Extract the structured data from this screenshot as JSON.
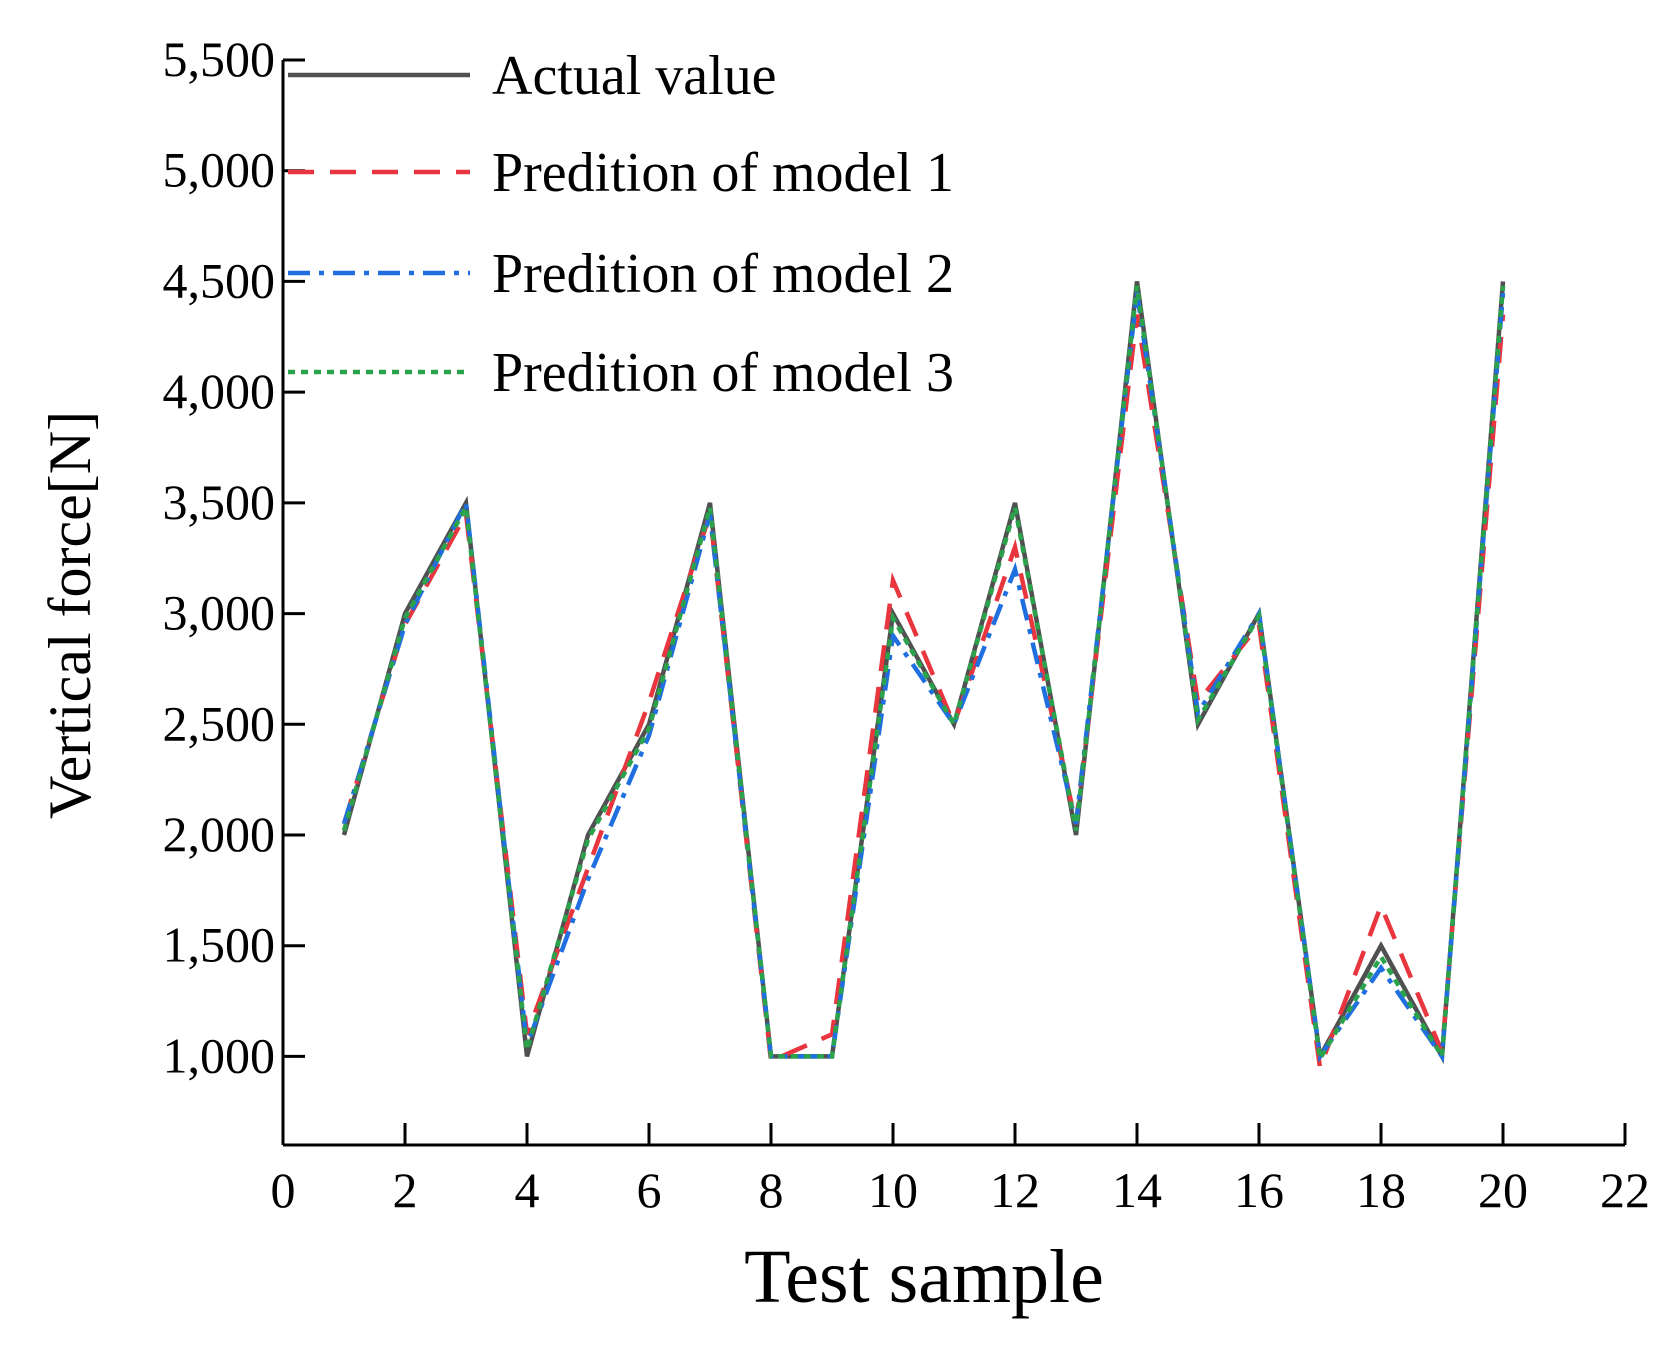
{
  "chart_data": {
    "type": "line",
    "title": "",
    "xlabel": "Test sample",
    "ylabel": "Vertical force[N]",
    "xlim": [
      0,
      22
    ],
    "ylim": [
      600,
      5500
    ],
    "xticks": [
      0,
      2,
      4,
      6,
      8,
      10,
      12,
      14,
      16,
      18,
      20,
      22
    ],
    "xtick_labels": [
      "0",
      "2",
      "4",
      "6",
      "8",
      "10",
      "12",
      "14",
      "16",
      "18",
      "20",
      "22"
    ],
    "yticks": [
      1000,
      1500,
      2000,
      2500,
      3000,
      3500,
      4000,
      4500,
      5000,
      5500
    ],
    "ytick_labels": [
      "1,000",
      "1,500",
      "2,000",
      "2,500",
      "3,000",
      "3,500",
      "4,000",
      "4,500",
      "5,000",
      "5,500"
    ],
    "grid": false,
    "legend_position": "top-left",
    "x": [
      1,
      2,
      3,
      4,
      5,
      6,
      7,
      8,
      9,
      10,
      11,
      12,
      13,
      14,
      15,
      16,
      17,
      18,
      19,
      20
    ],
    "series": [
      {
        "name": "Actual value",
        "color": "#505050",
        "dash": "solid",
        "values": [
          2000,
          3000,
          3500,
          1000,
          2000,
          2500,
          3500,
          1000,
          1000,
          3000,
          2500,
          3500,
          2000,
          4500,
          2500,
          3000,
          1000,
          1500,
          1000,
          4500
        ]
      },
      {
        "name": "Predition of model 1",
        "color": "#e8353e",
        "dash": "dashed",
        "values": [
          2050,
          2950,
          3450,
          1100,
          1850,
          2600,
          3450,
          980,
          1100,
          3150,
          2500,
          3300,
          2050,
          4350,
          2600,
          2950,
          950,
          1680,
          1020,
          4350
        ]
      },
      {
        "name": "Predition of model 2",
        "color": "#1f6fe0",
        "dash": "dashdot",
        "values": [
          2050,
          2950,
          3500,
          1050,
          1800,
          2450,
          3450,
          1000,
          1000,
          2900,
          2500,
          3200,
          2050,
          4450,
          2550,
          3000,
          1000,
          1400,
          1000,
          4450
        ]
      },
      {
        "name": "Predition of model 3",
        "color": "#2ba24c",
        "dash": "dotted",
        "values": [
          2020,
          2980,
          3480,
          1030,
          1980,
          2480,
          3480,
          1000,
          1000,
          2980,
          2500,
          3480,
          2020,
          4480,
          2520,
          2990,
          990,
          1450,
          1000,
          4480
        ]
      }
    ]
  }
}
